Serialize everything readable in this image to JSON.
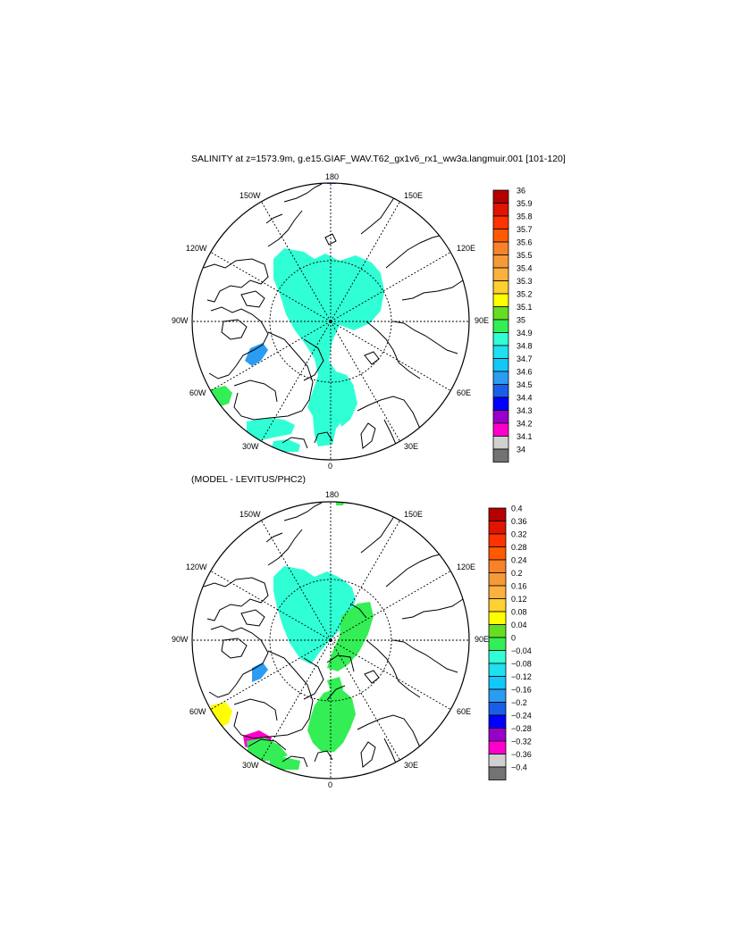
{
  "panels": [
    {
      "title": "SALINITY at z=1573.9m, g.e15.GIAF_WAV.T62_gx1v6_rx1_ww3a.langmuir.001 [101-120]",
      "lon_labels": [
        "180",
        "150E",
        "120E",
        "90E",
        "60E",
        "30E",
        "0",
        "30W",
        "60W",
        "90W",
        "120W",
        "150W"
      ],
      "colorbar": {
        "labels": [
          "36",
          "35.9",
          "35.8",
          "35.7",
          "35.6",
          "35.5",
          "35.4",
          "35.3",
          "35.2",
          "35.1",
          "35",
          "34.9",
          "34.8",
          "34.7",
          "34.6",
          "34.5",
          "34.4",
          "34.3",
          "34.2",
          "34.1",
          "34"
        ],
        "colors": [
          "#b50000",
          "#e01400",
          "#ff3300",
          "#ff5a00",
          "#f7822a",
          "#f59a38",
          "#fbb040",
          "#ffd030",
          "#ffff00",
          "#66dd22",
          "#33ee55",
          "#30ffd6",
          "#1fe0f0",
          "#12c8f8",
          "#2b9cf2",
          "#1a5ee8",
          "#0000ff",
          "#9900cc",
          "#ff00cc",
          "#d0d0d0",
          "#737373"
        ]
      }
    },
    {
      "title": "(MODEL - LEVITUS/PHC2)",
      "lon_labels": [
        "180",
        "150E",
        "120E",
        "90E",
        "60E",
        "30E",
        "0",
        "30W",
        "60W",
        "90W",
        "120W",
        "150W"
      ],
      "colorbar": {
        "labels": [
          "0.4",
          "0.36",
          "0.32",
          "0.28",
          "0.24",
          "0.2",
          "0.16",
          "0.12",
          "0.08",
          "0.04",
          "0",
          "−0.04",
          "−0.08",
          "−0.12",
          "−0.16",
          "−0.2",
          "−0.24",
          "−0.28",
          "−0.32",
          "−0.36",
          "−0.4"
        ],
        "colors": [
          "#b50000",
          "#e01400",
          "#ff3300",
          "#ff5a00",
          "#f7822a",
          "#f59a38",
          "#fbb040",
          "#ffd030",
          "#ffff00",
          "#66dd22",
          "#33ee55",
          "#30ffd6",
          "#1fe0f0",
          "#12c8f8",
          "#2b9cf2",
          "#1a5ee8",
          "#0000ff",
          "#9900cc",
          "#ff00cc",
          "#d0d0d0",
          "#737373"
        ]
      }
    }
  ]
}
